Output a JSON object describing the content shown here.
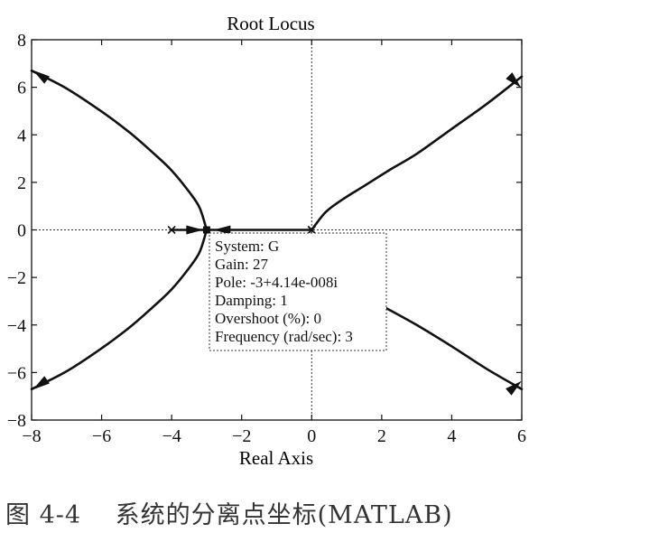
{
  "chart_data": {
    "type": "line",
    "title": "Root Locus",
    "xlabel": "Real Axis",
    "ylabel": "",
    "xlim": [
      -8,
      6
    ],
    "ylim": [
      -8,
      8
    ],
    "xticks": [
      -8,
      -6,
      -4,
      -2,
      0,
      2,
      4,
      6
    ],
    "yticks": [
      -8,
      -6,
      -4,
      -2,
      0,
      2,
      4,
      6,
      8
    ],
    "xtick_labels": [
      "−8",
      "−6",
      "−4",
      "−2",
      "0",
      "2",
      "4",
      "6"
    ],
    "ytick_labels": [
      "−8",
      "−6",
      "−4",
      "−2",
      "0",
      "2",
      "4",
      "6",
      "8"
    ],
    "grid": false,
    "zero_lines": true,
    "poles": [
      [
        0,
        0
      ],
      [
        0,
        0
      ],
      [
        -4,
        0
      ]
    ],
    "breakaway_point": [
      -3,
      0
    ],
    "series": [
      {
        "x": [
          0,
          -0.5,
          -1,
          -1.5,
          -2,
          -2.5,
          -3
        ],
        "y": [
          0,
          0,
          0,
          0,
          0,
          0,
          0
        ]
      },
      {
        "x": [
          -4,
          -3.5,
          -3
        ],
        "y": [
          0,
          0,
          0
        ]
      },
      {
        "x": [
          -3,
          -3.2,
          -3.5,
          -4.0,
          -4.5,
          -5.2,
          -6.0,
          -7.0,
          -8.0
        ],
        "y": [
          0,
          0.93,
          1.6,
          2.5,
          3.2,
          4.1,
          4.98,
          5.95,
          6.7
        ]
      },
      {
        "x": [
          -3,
          -3.2,
          -3.5,
          -4.0,
          -4.5,
          -5.2,
          -6.0,
          -7.0,
          -8.0
        ],
        "y": [
          0,
          -0.93,
          -1.6,
          -2.5,
          -3.2,
          -4.1,
          -4.98,
          -5.95,
          -6.7
        ]
      },
      {
        "x": [
          0,
          0.4,
          0.9,
          1.5,
          2.2,
          3.0,
          4.0,
          5.0,
          6.0
        ],
        "y": [
          0,
          0.75,
          1.3,
          1.85,
          2.5,
          3.2,
          4.25,
          5.3,
          6.45
        ]
      },
      {
        "x": [
          1.5,
          2.2,
          3.0,
          4.0,
          5.0,
          6.0
        ],
        "y": [
          -2.8,
          -3.35,
          -4.0,
          -4.9,
          -5.85,
          -6.7
        ]
      }
    ],
    "direction_markers": [
      {
        "series": 1,
        "x": -3.35,
        "y": 0,
        "angle": 0
      },
      {
        "series": 0,
        "x": -2.55,
        "y": 0,
        "angle": 180
      },
      {
        "series": 2,
        "x": -7.75,
        "y": 6.5,
        "angle": 145
      },
      {
        "series": 3,
        "x": -7.75,
        "y": -6.5,
        "angle": 215
      },
      {
        "series": 4,
        "x": 5.8,
        "y": 6.25,
        "angle": -45
      },
      {
        "series": 5,
        "x": 5.8,
        "y": -6.6,
        "angle": 40
      }
    ],
    "datatip": {
      "lines": [
        "System: G",
        "Gain: 27",
        "Pole: -3+4.14e-008i",
        "Damping: 1",
        "Overshoot (%): 0",
        "Frequency (rad/sec): 3"
      ],
      "anchor": [
        -3,
        0
      ]
    }
  },
  "caption": "图 4-4　 系统的分离点坐标(MATLAB)"
}
